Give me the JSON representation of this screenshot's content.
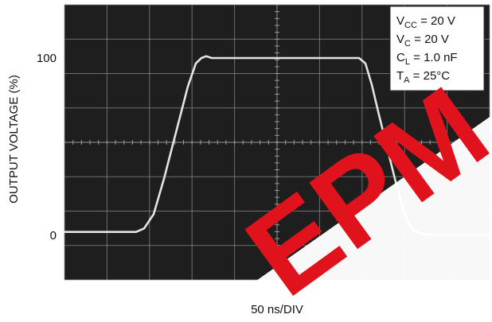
{
  "chart_data": {
    "type": "line",
    "title": "",
    "xlabel": "50 ns/DIV",
    "ylabel": "OUTPUT VOLTAGE (%)",
    "ylim": [
      -25,
      130
    ],
    "xlim": [
      0,
      534
    ],
    "yticks": [
      {
        "label": "0",
        "value": 0
      },
      {
        "label": "100",
        "value": 100
      }
    ],
    "grid": true,
    "legend_position": "top-right",
    "conditions": [
      {
        "main": "V",
        "sub": "CC",
        "rest": " = 20 V"
      },
      {
        "main": "V",
        "sub": "C",
        "rest": " = 20 V"
      },
      {
        "main": "C",
        "sub": "L",
        "rest": " = 1.0 nF"
      },
      {
        "main": "T",
        "sub": "A",
        "rest": " = 25°C"
      }
    ],
    "series": [
      {
        "x": [
          0,
          90,
          100,
          112,
          125,
          140,
          155,
          165,
          172,
          178,
          185,
          200,
          220,
          260,
          300,
          340,
          370,
          378,
          386,
          395,
          405,
          415,
          425,
          432,
          438,
          450,
          470,
          534
        ],
        "y": [
          2,
          2,
          4,
          12,
          32,
          58,
          84,
          97,
          100,
          101,
          100,
          100,
          100,
          100,
          100,
          100,
          100,
          97,
          85,
          68,
          50,
          32,
          15,
          7,
          3,
          0.8,
          0.3,
          0.3
        ]
      }
    ]
  },
  "watermark": {
    "text": "EPM",
    "color": "#e0121c"
  }
}
